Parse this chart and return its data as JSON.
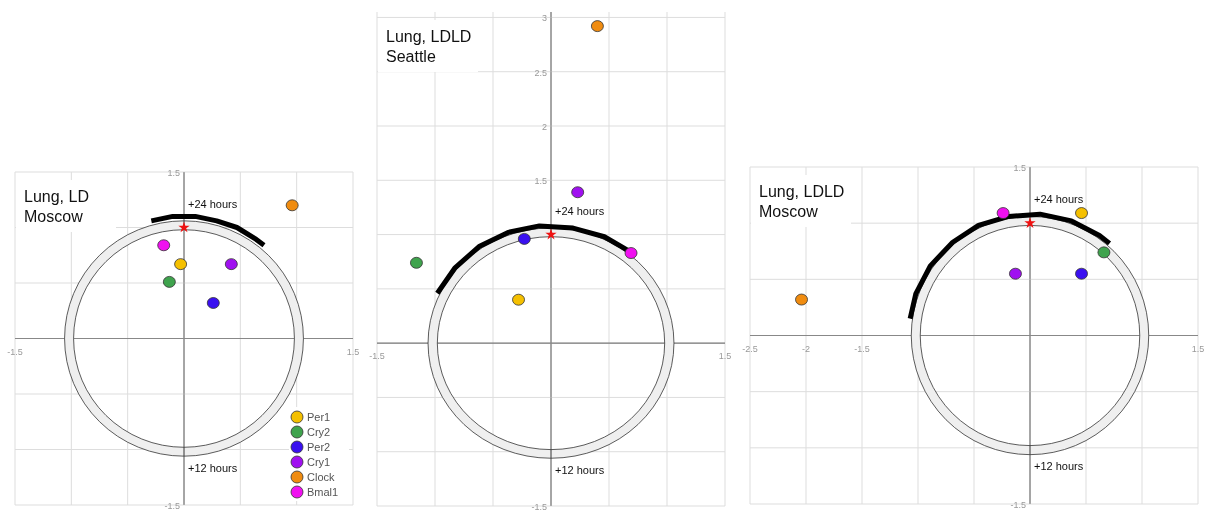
{
  "chart_data": [
    {
      "type": "scatter",
      "title": "Lung, LD",
      "subtitle": "Moscow",
      "xlim": [
        -1.5,
        1.5
      ],
      "ylim": [
        -1.5,
        1.5
      ],
      "xticks": [
        -1.5,
        {
          "value": -1,
          "label": null
        },
        {
          "value": -0.5,
          "label": null
        },
        {
          "value": 0,
          "label": null
        },
        {
          "value": 0.5,
          "label": null
        },
        {
          "value": 1,
          "label": null
        },
        1.5
      ],
      "yticks": [
        -1.5,
        {
          "value": -1,
          "label": null
        },
        {
          "value": -0.5,
          "label": null
        },
        {
          "value": 0,
          "label": null
        },
        {
          "value": 0.5,
          "label": null
        },
        {
          "value": 1,
          "label": null
        },
        1.5
      ],
      "grid": true,
      "legend": "bottom right",
      "marker": "circle",
      "annotations": [
        "+24 hours",
        "+12 hours"
      ],
      "series": [
        {
          "type": "line",
          "marker": "none",
          "color": "#000000",
          "x": [
            -0.29,
            -0.1,
            0.1,
            0.29,
            0.47,
            0.63,
            0.71
          ],
          "values": [
            1.06,
            1.1,
            1.1,
            1.06,
            1,
            0.9,
            0.84
          ]
        },
        {
          "name": "Per1",
          "color": "#f5c000",
          "x": [
            -0.03
          ],
          "values": [
            0.67
          ]
        },
        {
          "name": "Cry2",
          "color": "#3fa34d",
          "x": [
            -0.13
          ],
          "values": [
            0.51
          ]
        },
        {
          "name": "Per2",
          "color": "#3a10f0",
          "x": [
            0.26
          ],
          "values": [
            0.32
          ]
        },
        {
          "name": "Cry1",
          "color": "#a010f0",
          "x": [
            0.42
          ],
          "values": [
            0.67
          ]
        },
        {
          "name": "Clock",
          "color": "#f08c10",
          "x": [
            0.96
          ],
          "values": [
            1.2
          ]
        },
        {
          "name": "Bmal1",
          "color": "#f010f0",
          "x": [
            -0.18
          ],
          "values": [
            0.84
          ]
        }
      ]
    },
    {
      "type": "scatter",
      "title": "Lung, LDLD",
      "subtitle": "Seattle",
      "xlim": [
        -1.5,
        1.5
      ],
      "ylim": [
        -1.5,
        3.05
      ],
      "xticks": [
        -1.5,
        {
          "value": -1,
          "label": null
        },
        {
          "value": -0.5,
          "label": null
        },
        {
          "value": 0,
          "label": null
        },
        {
          "value": 0.5,
          "label": null
        },
        {
          "value": 1,
          "label": null
        },
        1.5
      ],
      "yticks": [
        -1.5,
        {
          "value": -1,
          "label": null
        },
        {
          "value": -0.5,
          "label": null
        },
        {
          "value": 0,
          "label": null
        },
        {
          "value": 0.5,
          "label": null
        },
        {
          "value": 1,
          "label": null
        },
        1.5,
        2,
        2.5,
        3
      ],
      "grid": true,
      "marker": "circle",
      "annotations": [
        "+24 hours",
        "+12 hours"
      ],
      "series": [
        {
          "type": "line",
          "marker": "none",
          "color": "#000000",
          "x": [
            -0.98,
            -0.83,
            -0.62,
            -0.37,
            -0.1,
            0.19,
            0.46,
            0.67
          ],
          "values": [
            0.46,
            0.69,
            0.89,
            1.02,
            1.08,
            1.06,
            0.98,
            0.85
          ]
        },
        {
          "color": "#f5c000",
          "x": [
            -0.28
          ],
          "values": [
            0.4
          ]
        },
        {
          "color": "#3fa34d",
          "x": [
            -1.16
          ],
          "values": [
            0.74
          ]
        },
        {
          "color": "#3a10f0",
          "x": [
            -0.23
          ],
          "values": [
            0.96
          ]
        },
        {
          "color": "#a010f0",
          "x": [
            0.23
          ],
          "values": [
            1.39
          ]
        },
        {
          "color": "#f08c10",
          "x": [
            0.4
          ],
          "values": [
            2.92
          ]
        },
        {
          "color": "#f010f0",
          "x": [
            0.69
          ],
          "values": [
            0.83
          ]
        }
      ]
    },
    {
      "type": "scatter",
      "title": "Lung, LDLD",
      "subtitle": "Moscow",
      "xlim": [
        -2.5,
        1.5
      ],
      "ylim": [
        -1.5,
        1.5
      ],
      "xticks": [
        -2.5,
        -2,
        -1.5,
        {
          "value": -1,
          "label": null
        },
        {
          "value": -0.5,
          "label": null
        },
        {
          "value": 0,
          "label": null
        },
        {
          "value": 0.5,
          "label": null
        },
        {
          "value": 1,
          "label": null
        },
        1.5
      ],
      "yticks": [
        -1.5,
        {
          "value": -1,
          "label": null
        },
        {
          "value": -0.5,
          "label": null
        },
        {
          "value": 0,
          "label": null
        },
        {
          "value": 0.5,
          "label": null
        },
        {
          "value": 1,
          "label": null
        },
        1.5
      ],
      "grid": true,
      "marker": "circle",
      "annotations": [
        "+24 hours",
        "+12 hours"
      ],
      "series": [
        {
          "type": "line",
          "marker": "none",
          "color": "#000000",
          "x": [
            -1.07,
            -1.02,
            -0.89,
            -0.69,
            -0.46,
            -0.19,
            0.09,
            0.37,
            0.62,
            0.71
          ],
          "values": [
            0.15,
            0.37,
            0.62,
            0.83,
            0.98,
            1.06,
            1.08,
            1.02,
            0.89,
            0.82
          ]
        },
        {
          "color": "#f5c000",
          "x": [
            0.46
          ],
          "values": [
            1.09
          ]
        },
        {
          "color": "#3fa34d",
          "x": [
            0.66
          ],
          "values": [
            0.74
          ]
        },
        {
          "color": "#3a10f0",
          "x": [
            0.46
          ],
          "values": [
            0.55
          ]
        },
        {
          "color": "#a010f0",
          "x": [
            -0.13
          ],
          "values": [
            0.55
          ]
        },
        {
          "color": "#f08c10",
          "x": [
            -2.04
          ],
          "values": [
            0.32
          ]
        },
        {
          "color": "#f010f0",
          "x": [
            -0.24
          ],
          "values": [
            1.09
          ]
        }
      ]
    }
  ]
}
